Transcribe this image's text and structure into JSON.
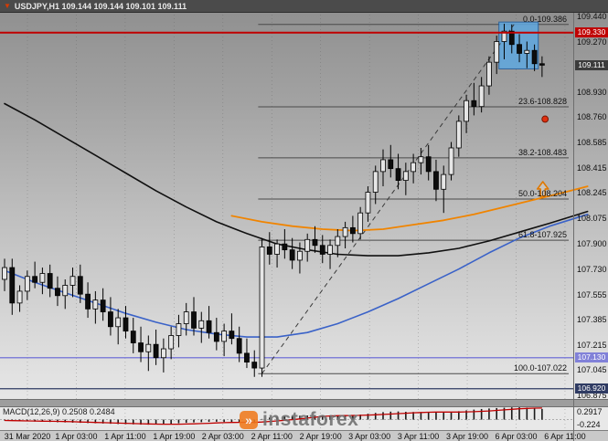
{
  "title_bar": {
    "symbol_icon": "▼",
    "title": "USDJPY,H1 109.144 109.144 109.101 109.111"
  },
  "watermark": {
    "text": "instaforex",
    "logo_glyph": "»"
  },
  "chart_data": {
    "type": "candlestick",
    "symbol": "USDJPY",
    "timeframe": "H1",
    "quote": {
      "open": "109.144",
      "high": "109.144",
      "low": "109.101",
      "close": "109.111"
    },
    "price_axis": {
      "labels": [
        "109.440",
        "109.270",
        "109.100",
        "108.930",
        "108.760",
        "108.585",
        "108.415",
        "108.245",
        "108.075",
        "107.900",
        "107.730",
        "107.555",
        "107.385",
        "107.215",
        "107.045",
        "106.875"
      ]
    },
    "badges": [
      {
        "text": "109.330",
        "price": 109.33,
        "color": "#c00000"
      },
      {
        "text": "109.111",
        "price": 109.111,
        "color": "#3c3c3c"
      },
      {
        "text": "107.130",
        "price": 107.13,
        "color": "#8181d8"
      },
      {
        "text": "106.920",
        "price": 106.92,
        "color": "#2f3b63"
      }
    ],
    "hlines": [
      {
        "name": "resistance-line",
        "price": 109.33,
        "color": "#c00000",
        "width": 2,
        "on_top": true
      },
      {
        "name": "support-line-purple",
        "price": 107.13,
        "color": "#8181d8",
        "width": 1.5
      },
      {
        "name": "support-line-navy",
        "price": 106.92,
        "color": "#2f3b63",
        "width": 1.2
      }
    ],
    "fibonacci": {
      "start_index": 33.5,
      "color": "#4a4a4a",
      "levels": [
        {
          "label": "0.0-109.386",
          "price": 109.386
        },
        {
          "label": "23.6-108.828",
          "price": 108.828
        },
        {
          "label": "38.2-108.483",
          "price": 108.483
        },
        {
          "label": "50.0-108.204",
          "price": 108.204
        },
        {
          "label": "61.8-107.925",
          "price": 107.925
        },
        {
          "label": "100.0-107.022",
          "price": 107.022
        }
      ]
    },
    "trendline": {
      "from_index": 34,
      "from_price": 107.022,
      "to_index": 67.3,
      "to_price": 109.386,
      "style": "dashed",
      "color": "#3a3a3a"
    },
    "highlight_box": {
      "from_index": 65.3,
      "to_index": 70.5,
      "top_price": 109.402,
      "bottom_price": 109.085,
      "fill": "#5fa8e0",
      "border": "#1c5a9c"
    },
    "arrow": {
      "index": 71.1,
      "price": 108.235,
      "direction": "up",
      "color": "#e07800"
    },
    "alert_dot": {
      "index": 71.4,
      "price": 108.745,
      "color": "#e03010"
    },
    "candle_colors": {
      "bull_fill": "#e6e6e6",
      "bear_fill": "#0d0d0d",
      "outline": "#000000"
    },
    "candles": [
      [
        107.66,
        107.8,
        107.58,
        107.74
      ],
      [
        107.74,
        107.8,
        107.42,
        107.5
      ],
      [
        107.5,
        107.62,
        107.44,
        107.58
      ],
      [
        107.58,
        107.72,
        107.52,
        107.68
      ],
      [
        107.68,
        107.78,
        107.6,
        107.64
      ],
      [
        107.64,
        107.74,
        107.56,
        107.7
      ],
      [
        107.7,
        107.76,
        107.54,
        107.6
      ],
      [
        107.6,
        107.68,
        107.48,
        107.55
      ],
      [
        107.55,
        107.66,
        107.46,
        107.62
      ],
      [
        107.62,
        107.74,
        107.54,
        107.68
      ],
      [
        107.68,
        107.76,
        107.5,
        107.56
      ],
      [
        107.56,
        107.64,
        107.4,
        107.46
      ],
      [
        107.46,
        107.58,
        107.36,
        107.52
      ],
      [
        107.52,
        107.6,
        107.38,
        107.44
      ],
      [
        107.44,
        107.54,
        107.28,
        107.34
      ],
      [
        107.34,
        107.46,
        107.22,
        107.4
      ],
      [
        107.4,
        107.48,
        107.26,
        107.31
      ],
      [
        107.31,
        107.4,
        107.16,
        107.23
      ],
      [
        107.23,
        107.34,
        107.1,
        107.17
      ],
      [
        107.17,
        107.28,
        107.04,
        107.22
      ],
      [
        107.22,
        107.32,
        107.08,
        107.13
      ],
      [
        107.13,
        107.26,
        107.03,
        107.19
      ],
      [
        107.19,
        107.34,
        107.12,
        107.28
      ],
      [
        107.28,
        107.42,
        107.2,
        107.36
      ],
      [
        107.36,
        107.5,
        107.28,
        107.44
      ],
      [
        107.44,
        107.54,
        107.28,
        107.33
      ],
      [
        107.33,
        107.44,
        107.23,
        107.38
      ],
      [
        107.38,
        107.48,
        107.26,
        107.3
      ],
      [
        107.3,
        107.4,
        107.18,
        107.24
      ],
      [
        107.24,
        107.36,
        107.14,
        107.31
      ],
      [
        107.31,
        107.43,
        107.22,
        107.26
      ],
      [
        107.26,
        107.34,
        107.1,
        107.16
      ],
      [
        107.16,
        107.26,
        107.06,
        107.1
      ],
      [
        107.1,
        107.18,
        107.0,
        107.06
      ],
      [
        107.06,
        107.94,
        107.0,
        107.88
      ],
      [
        107.88,
        107.98,
        107.76,
        107.83
      ],
      [
        107.83,
        107.93,
        107.74,
        107.9
      ],
      [
        107.9,
        108.0,
        107.8,
        107.86
      ],
      [
        107.86,
        107.94,
        107.73,
        107.79
      ],
      [
        107.79,
        107.91,
        107.7,
        107.85
      ],
      [
        107.85,
        107.97,
        107.78,
        107.93
      ],
      [
        107.93,
        108.02,
        107.84,
        107.89
      ],
      [
        107.89,
        107.96,
        107.77,
        107.83
      ],
      [
        107.83,
        107.93,
        107.73,
        107.89
      ],
      [
        107.89,
        108.0,
        107.81,
        107.95
      ],
      [
        107.95,
        108.05,
        107.87,
        108.01
      ],
      [
        108.01,
        108.09,
        107.91,
        107.97
      ],
      [
        107.97,
        108.15,
        107.93,
        108.11
      ],
      [
        108.11,
        108.29,
        108.05,
        108.25
      ],
      [
        108.25,
        108.43,
        108.17,
        108.39
      ],
      [
        108.39,
        108.54,
        108.29,
        108.47
      ],
      [
        108.47,
        108.57,
        108.35,
        108.41
      ],
      [
        108.41,
        108.51,
        108.27,
        108.33
      ],
      [
        108.33,
        108.45,
        108.23,
        108.39
      ],
      [
        108.39,
        108.51,
        108.31,
        108.45
      ],
      [
        108.45,
        108.55,
        108.37,
        108.49
      ],
      [
        108.49,
        108.57,
        108.33,
        108.39
      ],
      [
        108.39,
        108.47,
        108.19,
        108.27
      ],
      [
        108.27,
        108.43,
        108.11,
        108.37
      ],
      [
        108.37,
        108.59,
        108.33,
        108.55
      ],
      [
        108.55,
        108.77,
        108.49,
        108.73
      ],
      [
        108.73,
        108.91,
        108.65,
        108.87
      ],
      [
        108.87,
        108.99,
        108.77,
        108.83
      ],
      [
        108.83,
        109.03,
        108.79,
        108.97
      ],
      [
        108.97,
        109.17,
        108.91,
        109.13
      ],
      [
        109.13,
        109.31,
        109.05,
        109.27
      ],
      [
        109.27,
        109.39,
        109.15,
        109.34
      ],
      [
        109.34,
        109.386,
        109.19,
        109.25
      ],
      [
        109.25,
        109.32,
        109.13,
        109.19
      ],
      [
        109.19,
        109.27,
        109.09,
        109.21
      ],
      [
        109.21,
        109.25,
        109.07,
        109.12
      ],
      [
        109.12,
        109.17,
        109.03,
        109.111
      ]
    ],
    "moving_averages": [
      {
        "name": "ma-slow-black",
        "color": "#101010",
        "width": 1.6,
        "points": [
          [
            0,
            108.85
          ],
          [
            4,
            108.74
          ],
          [
            8,
            108.62
          ],
          [
            12,
            108.5
          ],
          [
            16,
            108.38
          ],
          [
            20,
            108.26
          ],
          [
            24,
            108.15
          ],
          [
            28,
            108.05
          ],
          [
            32,
            107.97
          ],
          [
            36,
            107.9
          ],
          [
            40,
            107.86
          ],
          [
            44,
            107.83
          ],
          [
            48,
            107.82
          ],
          [
            52,
            107.82
          ],
          [
            56,
            107.84
          ],
          [
            60,
            107.87
          ],
          [
            64,
            107.92
          ],
          [
            68,
            107.98
          ],
          [
            72,
            108.04
          ],
          [
            77,
            108.12
          ]
        ]
      },
      {
        "name": "ma-slower-blue",
        "color": "#3a62c8",
        "width": 1.6,
        "points": [
          [
            0,
            107.72
          ],
          [
            4,
            107.64
          ],
          [
            8,
            107.57
          ],
          [
            12,
            107.5
          ],
          [
            16,
            107.43
          ],
          [
            20,
            107.37
          ],
          [
            24,
            107.32
          ],
          [
            28,
            107.29
          ],
          [
            32,
            107.27
          ],
          [
            36,
            107.27
          ],
          [
            40,
            107.3
          ],
          [
            44,
            107.36
          ],
          [
            48,
            107.44
          ],
          [
            52,
            107.53
          ],
          [
            56,
            107.63
          ],
          [
            60,
            107.73
          ],
          [
            64,
            107.84
          ],
          [
            68,
            107.94
          ],
          [
            72,
            108.02
          ],
          [
            77,
            108.1
          ]
        ]
      },
      {
        "name": "ma-orange",
        "color": "#f08400",
        "width": 1.8,
        "points": [
          [
            30,
            108.09
          ],
          [
            34,
            108.05
          ],
          [
            38,
            108.02
          ],
          [
            42,
            108.0
          ],
          [
            46,
            107.99
          ],
          [
            50,
            108.0
          ],
          [
            54,
            108.03
          ],
          [
            58,
            108.06
          ],
          [
            62,
            108.1
          ],
          [
            66,
            108.15
          ],
          [
            70,
            108.2
          ],
          [
            74,
            108.25
          ],
          [
            77,
            108.29
          ]
        ]
      }
    ],
    "macd": {
      "label": "MACD(12,26,9) 0.2508 0.2484",
      "max": 0.2917,
      "min": -0.224,
      "axis_max_label": "0.2917",
      "axis_min_label": "-0.224",
      "bar_color": "#1a1a1a",
      "signal_color": "#c00000",
      "histogram": [
        -0.02,
        -0.028,
        -0.034,
        -0.04,
        -0.046,
        -0.052,
        -0.056,
        -0.062,
        -0.066,
        -0.072,
        -0.076,
        -0.082,
        -0.086,
        -0.092,
        -0.098,
        -0.104,
        -0.108,
        -0.112,
        -0.118,
        -0.12,
        -0.114,
        -0.106,
        -0.096,
        -0.086,
        -0.076,
        -0.066,
        -0.06,
        -0.054,
        -0.05,
        -0.056,
        -0.062,
        -0.07,
        -0.078,
        -0.084,
        0.015,
        0.048,
        0.065,
        0.078,
        0.086,
        0.092,
        0.098,
        0.102,
        0.104,
        0.1,
        0.096,
        0.098,
        0.102,
        0.118,
        0.138,
        0.158,
        0.176,
        0.188,
        0.192,
        0.184,
        0.18,
        0.176,
        0.172,
        0.166,
        0.162,
        0.178,
        0.198,
        0.218,
        0.236,
        0.25,
        0.262,
        0.272,
        0.28,
        0.288,
        0.29,
        0.282,
        0.268,
        0.251
      ]
    },
    "time_axis": {
      "labels": [
        "31 Mar 2020",
        "1 Apr 03:00",
        "1 Apr 11:00",
        "1 Apr 19:00",
        "2 Apr 03:00",
        "2 Apr 11:00",
        "2 Apr 19:00",
        "3 Apr 03:00",
        "3 Apr 11:00",
        "3 Apr 19:00",
        "6 Apr 03:00",
        "6 Apr 11:00"
      ]
    }
  }
}
